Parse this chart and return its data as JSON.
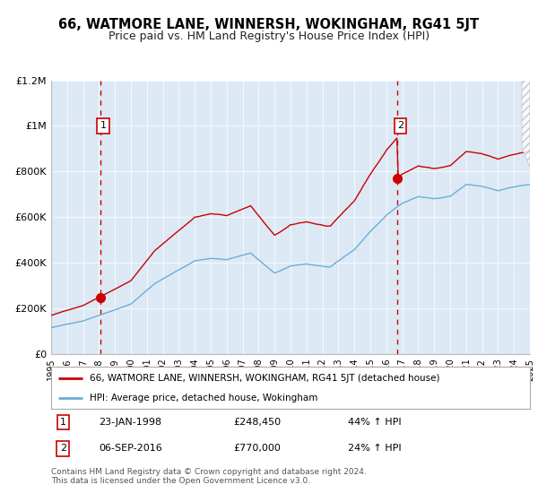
{
  "title": "66, WATMORE LANE, WINNERSH, WOKINGHAM, RG41 5JT",
  "subtitle": "Price paid vs. HM Land Registry's House Price Index (HPI)",
  "title_fontsize": 10.5,
  "subtitle_fontsize": 9,
  "background_color": "#ffffff",
  "plot_bg_color": "#dce9f5",
  "ylim": [
    0,
    1200000
  ],
  "yticks": [
    0,
    200000,
    400000,
    600000,
    800000,
    1000000,
    1200000
  ],
  "ytick_labels": [
    "£0",
    "£200K",
    "£400K",
    "£600K",
    "£800K",
    "£1M",
    "£1.2M"
  ],
  "x_start_year": 1995,
  "x_end_year": 2025,
  "purchase1_year": 1998.07,
  "purchase1_price": 248450,
  "purchase2_year": 2016.68,
  "purchase2_price": 770000,
  "hpi_line_color": "#6baed6",
  "price_line_color": "#cc0000",
  "dashed_line_color": "#cc0000",
  "point_color": "#cc0000",
  "grid_color": "#ffffff",
  "legend_label_red": "66, WATMORE LANE, WINNERSH, WOKINGHAM, RG41 5JT (detached house)",
  "legend_label_blue": "HPI: Average price, detached house, Wokingham",
  "annotation1_label": "1",
  "annotation1_date": "23-JAN-1998",
  "annotation1_price": "£248,450",
  "annotation1_hpi": "44% ↑ HPI",
  "annotation2_label": "2",
  "annotation2_date": "06-SEP-2016",
  "annotation2_price": "£770,000",
  "annotation2_hpi": "24% ↑ HPI",
  "footer": "Contains HM Land Registry data © Crown copyright and database right 2024.\nThis data is licensed under the Open Government Licence v3.0."
}
